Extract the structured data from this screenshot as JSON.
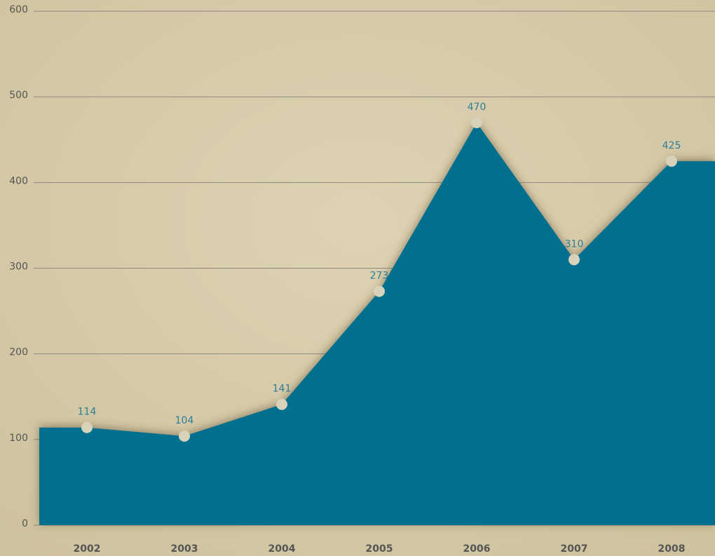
{
  "chart_data": {
    "type": "area",
    "categories": [
      "2002",
      "2003",
      "2004",
      "2005",
      "2006",
      "2007",
      "2008"
    ],
    "values": [
      114,
      104,
      141,
      273,
      470,
      310,
      425
    ],
    "color": "#006f8e",
    "ylim": [
      0,
      600
    ],
    "yticks": [
      0,
      100,
      200,
      300,
      400,
      500,
      600
    ],
    "grid": true
  }
}
